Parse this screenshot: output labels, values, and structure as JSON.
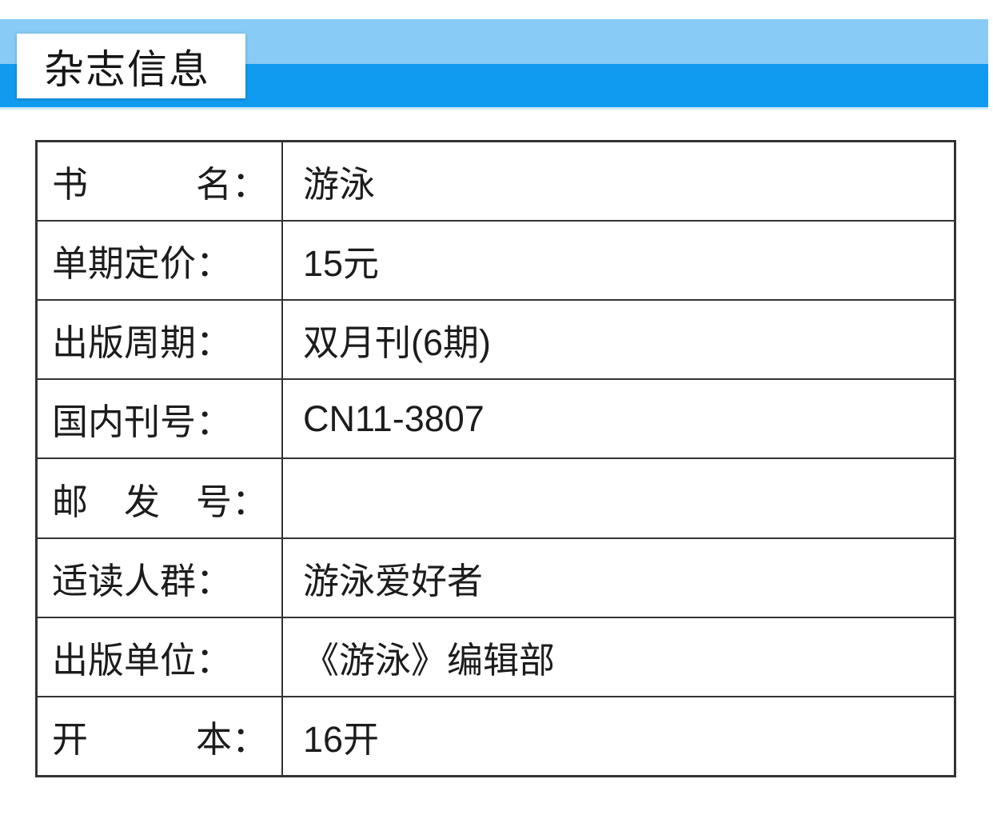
{
  "header": {
    "title": "杂志信息"
  },
  "colors": {
    "band_light": "#87cbf6",
    "band_dark": "#119bf0",
    "table_border": "#333333",
    "text": "#1c1c1c"
  },
  "table": {
    "rows": [
      {
        "label": "书　　　名：",
        "value": "游泳"
      },
      {
        "label": "单期定价：",
        "value": "15元"
      },
      {
        "label": "出版周期：",
        "value": "双月刊(6期)"
      },
      {
        "label": "国内刊号：",
        "value": "CN11-3807"
      },
      {
        "label": "邮　发　号：",
        "value": ""
      },
      {
        "label": "适读人群：",
        "value": "游泳爱好者"
      },
      {
        "label": "出版单位：",
        "value": "《游泳》编辑部"
      },
      {
        "label": "开　　　本：",
        "value": "16开"
      }
    ]
  }
}
